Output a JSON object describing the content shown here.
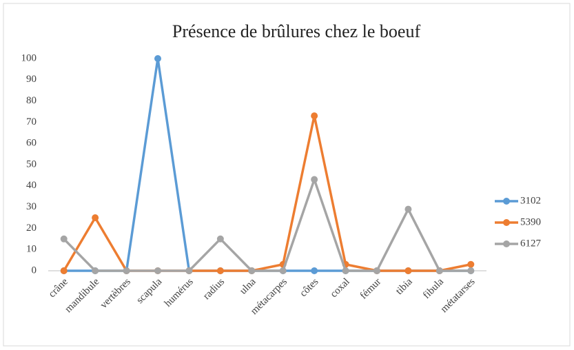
{
  "chart_data": {
    "type": "line",
    "title": "Présence de brûlures chez le boeuf",
    "categories": [
      "crâne",
      "mandibule",
      "vertèbres",
      "scapula",
      "humérus",
      "radius",
      "ulna",
      "métacarpes",
      "côtes",
      "coxal",
      "fémur",
      "tibia",
      "fibula",
      "métatarses"
    ],
    "series": [
      {
        "name": "3102",
        "color": "#5b9bd5",
        "values": [
          0,
          0,
          0,
          100,
          0,
          0,
          0,
          0,
          0,
          0,
          0,
          0,
          0,
          0
        ]
      },
      {
        "name": "5390",
        "color": "#ed7d31",
        "values": [
          0,
          25,
          0,
          0,
          0,
          0,
          0,
          3,
          73,
          3,
          0,
          0,
          0,
          3
        ]
      },
      {
        "name": "6127",
        "color": "#a5a5a5",
        "values": [
          15,
          0,
          0,
          0,
          0,
          15,
          0,
          0,
          43,
          0,
          0,
          29,
          0,
          0
        ]
      }
    ],
    "ylim": [
      0,
      100
    ],
    "yticks": [
      0,
      10,
      20,
      30,
      40,
      50,
      60,
      70,
      80,
      90,
      100
    ],
    "grid": false,
    "legend": "right"
  }
}
